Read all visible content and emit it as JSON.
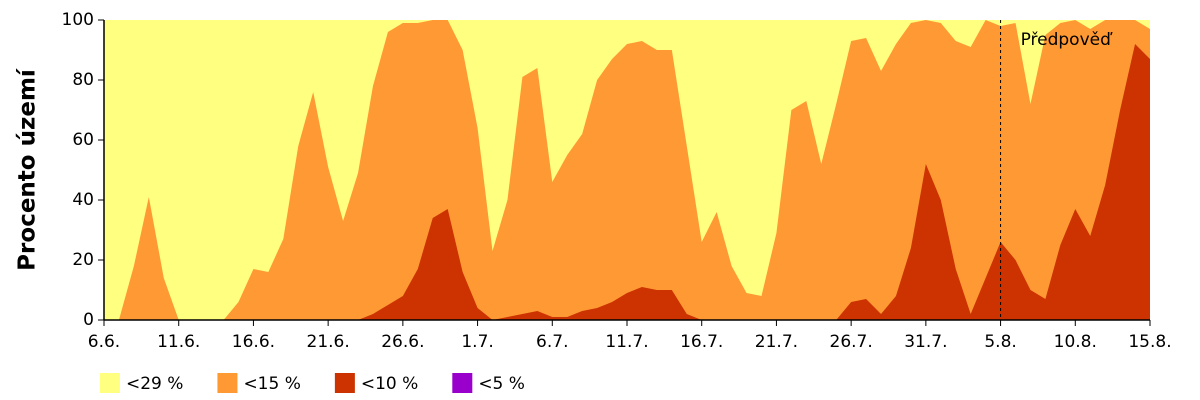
{
  "chart_data": {
    "type": "area",
    "y_label": "Procento území",
    "annotation": "Předpověď",
    "forecast_at": "5.8.",
    "categories": [
      "6.6.",
      null,
      null,
      null,
      null,
      "11.6.",
      null,
      null,
      null,
      null,
      "16.6.",
      null,
      null,
      null,
      null,
      "21.6.",
      null,
      null,
      null,
      null,
      "26.6.",
      null,
      null,
      null,
      null,
      "1.7.",
      null,
      null,
      null,
      null,
      "6.7.",
      null,
      null,
      null,
      null,
      "11.7.",
      null,
      null,
      null,
      null,
      "16.7.",
      null,
      null,
      null,
      null,
      "21.7.",
      null,
      null,
      null,
      null,
      "26.7.",
      null,
      null,
      null,
      null,
      "31.7.",
      null,
      null,
      null,
      null,
      "5.8.",
      null,
      null,
      null,
      null,
      "10.8.",
      null,
      null,
      null,
      null,
      "15.8."
    ],
    "series": [
      {
        "name": "<29 %",
        "color": "#ffff80",
        "values": [
          100,
          100,
          100,
          100,
          100,
          100,
          100,
          100,
          100,
          100,
          100,
          100,
          100,
          100,
          100,
          100,
          100,
          100,
          100,
          100,
          100,
          100,
          100,
          100,
          100,
          100,
          100,
          100,
          100,
          100,
          100,
          100,
          100,
          100,
          100,
          100,
          100,
          100,
          100,
          100,
          100,
          100,
          100,
          100,
          100,
          100,
          100,
          100,
          100,
          100,
          100,
          100,
          100,
          100,
          100,
          100,
          100,
          100,
          100,
          100,
          100,
          100,
          100,
          100,
          100,
          100,
          100,
          100,
          100,
          100,
          100
        ]
      },
      {
        "name": "<15 %",
        "color": "#ff9933",
        "values": [
          0,
          0,
          18,
          41,
          14,
          0,
          0,
          0,
          0,
          6,
          17,
          16,
          27,
          58,
          76,
          51,
          33,
          49,
          78,
          96,
          99,
          99,
          100,
          100,
          90,
          64,
          23,
          40,
          81,
          84,
          46,
          55,
          62,
          80,
          87,
          92,
          93,
          90,
          90,
          58,
          26,
          36,
          18,
          9,
          8,
          29,
          70,
          73,
          52,
          72,
          93,
          94,
          83,
          92,
          99,
          100,
          99,
          93,
          91,
          100,
          98,
          99,
          72,
          95,
          99,
          100,
          97,
          100,
          100,
          100,
          97
        ]
      },
      {
        "name": "<10 %",
        "color": "#cc3300",
        "values": [
          0,
          0,
          0,
          0,
          0,
          0,
          0,
          0,
          0,
          0,
          0,
          0,
          0,
          0,
          0,
          0,
          0,
          0,
          2,
          5,
          8,
          17,
          34,
          37,
          16,
          4,
          0,
          1,
          2,
          3,
          1,
          1,
          3,
          4,
          6,
          9,
          11,
          10,
          10,
          2,
          0,
          0,
          0,
          0,
          0,
          0,
          0,
          0,
          0,
          0,
          6,
          7,
          2,
          8,
          24,
          52,
          40,
          17,
          2,
          14,
          26,
          20,
          10,
          7,
          25,
          37,
          28,
          45,
          70,
          92,
          87
        ]
      },
      {
        "name": "<5 %",
        "color": "#9900cc",
        "values": [
          0,
          0,
          0,
          0,
          0,
          0,
          0,
          0,
          0,
          0,
          0,
          0,
          0,
          0,
          0,
          0,
          0,
          0,
          0,
          0,
          0,
          0,
          0,
          0,
          0,
          0,
          0,
          0,
          0,
          0,
          0,
          0,
          0,
          0,
          0,
          0,
          0,
          0,
          0,
          0,
          0,
          0,
          0,
          0,
          0,
          0,
          0,
          0,
          0,
          0,
          0,
          0,
          0,
          0,
          0,
          0,
          0,
          0,
          0,
          0,
          0,
          0,
          0,
          0,
          0,
          0,
          0,
          0,
          0,
          0,
          0
        ]
      }
    ],
    "ylim": [
      0,
      100
    ],
    "yticks": [
      0,
      20,
      40,
      60,
      80,
      100
    ],
    "legend": "bottom"
  }
}
